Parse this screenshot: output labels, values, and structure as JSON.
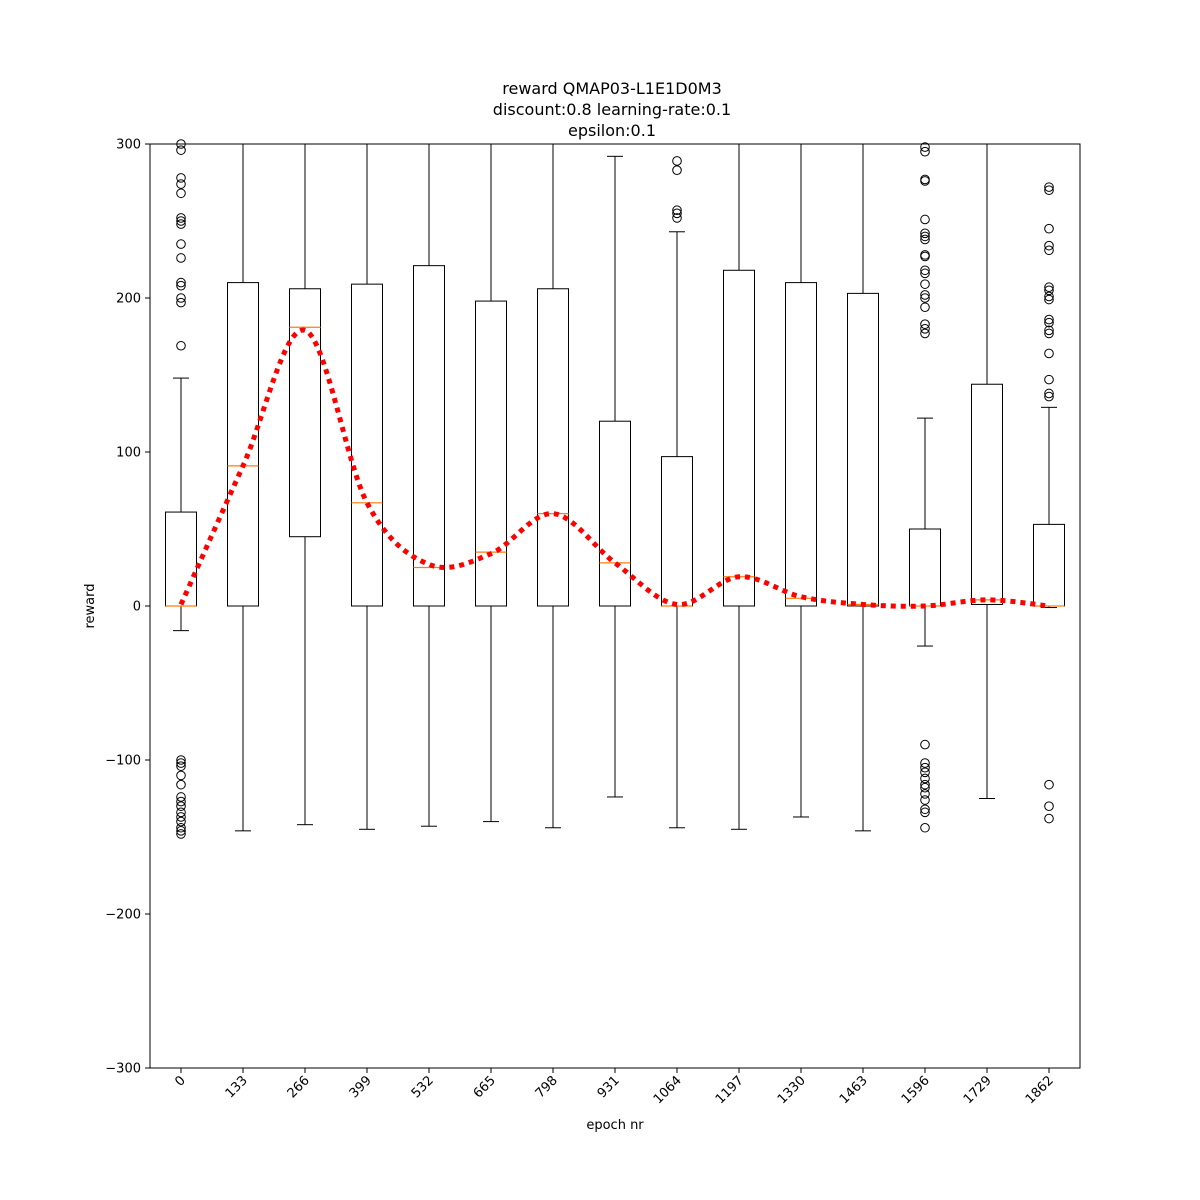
{
  "chart_data": {
    "type": "box",
    "title_lines": [
      "reward QMAP03-L1E1D0M3",
      "discount:0.8 learning-rate:0.1",
      "epsilon:0.1"
    ],
    "xlabel": "epoch nr",
    "ylabel": "reward",
    "ylim": [
      -300,
      300
    ],
    "yticks": [
      -300,
      -200,
      -100,
      0,
      100,
      200,
      300
    ],
    "categories": [
      "0",
      "133",
      "266",
      "399",
      "532",
      "665",
      "798",
      "931",
      "1064",
      "1197",
      "1330",
      "1463",
      "1596",
      "1729",
      "1862"
    ],
    "boxes": [
      {
        "q1": 0,
        "median": 0,
        "q3": 61,
        "whisker_low": -16,
        "whisker_high": 148,
        "outliers": [
          296,
          300,
          278,
          274,
          268,
          252,
          250,
          248,
          235,
          226,
          210,
          208,
          200,
          197,
          169,
          -100,
          -102,
          -104,
          -110,
          -116,
          -124,
          -127,
          -130,
          -134,
          -137,
          -140,
          -144,
          -146,
          -148
        ]
      },
      {
        "q1": 0,
        "median": 91,
        "q3": 210,
        "whisker_low": -146,
        "whisker_high": 300,
        "outliers": []
      },
      {
        "q1": 45,
        "median": 181,
        "q3": 206,
        "whisker_low": -142,
        "whisker_high": 300,
        "outliers": []
      },
      {
        "q1": 0,
        "median": 67,
        "q3": 209,
        "whisker_low": -145,
        "whisker_high": 300,
        "outliers": []
      },
      {
        "q1": 0,
        "median": 25,
        "q3": 221,
        "whisker_low": -143,
        "whisker_high": 300,
        "outliers": []
      },
      {
        "q1": 0,
        "median": 35,
        "q3": 198,
        "whisker_low": -140,
        "whisker_high": 300,
        "outliers": []
      },
      {
        "q1": 0,
        "median": 60,
        "q3": 206,
        "whisker_low": -144,
        "whisker_high": 300,
        "outliers": []
      },
      {
        "q1": 0,
        "median": 28,
        "q3": 120,
        "whisker_low": -124,
        "whisker_high": 292,
        "outliers": []
      },
      {
        "q1": 0,
        "median": 0,
        "q3": 97,
        "whisker_low": -144,
        "whisker_high": 243,
        "outliers": [
          289,
          283,
          257,
          255,
          252
        ]
      },
      {
        "q1": 0,
        "median": 19,
        "q3": 218,
        "whisker_low": -145,
        "whisker_high": 300,
        "outliers": []
      },
      {
        "q1": 0,
        "median": 5,
        "q3": 210,
        "whisker_low": -137,
        "whisker_high": 300,
        "outliers": []
      },
      {
        "q1": 0,
        "median": 1,
        "q3": 203,
        "whisker_low": -146,
        "whisker_high": 300,
        "outliers": []
      },
      {
        "q1": 0,
        "median": 0,
        "q3": 50,
        "whisker_low": -26,
        "whisker_high": 122,
        "outliers": [
          298,
          295,
          277,
          276,
          251,
          242,
          240,
          238,
          228,
          227,
          218,
          216,
          209,
          202,
          200,
          194,
          183,
          180,
          177,
          -90,
          -102,
          -105,
          -108,
          -112,
          -116,
          -118,
          -122,
          -126,
          -132,
          -134,
          -144
        ]
      },
      {
        "q1": 1,
        "median": 4,
        "q3": 144,
        "whisker_low": -125,
        "whisker_high": 300,
        "outliers": []
      },
      {
        "q1": 0,
        "median": 0,
        "q3": 53,
        "whisker_low": -1,
        "whisker_high": 129,
        "outliers": [
          272,
          270,
          245,
          234,
          231,
          207,
          205,
          201,
          199,
          186,
          184,
          179,
          177,
          164,
          147,
          138,
          136,
          -116,
          -130,
          -138
        ]
      }
    ],
    "trend": {
      "style": "red dotted line through medians",
      "values": [
        1,
        91,
        179,
        67,
        27,
        34,
        60,
        28,
        1,
        19,
        6,
        1,
        0,
        4,
        0
      ]
    },
    "colors": {
      "box": "#000000",
      "median": "#ff7f0e",
      "trend": "#ff0000",
      "outlier": "#000000"
    }
  }
}
